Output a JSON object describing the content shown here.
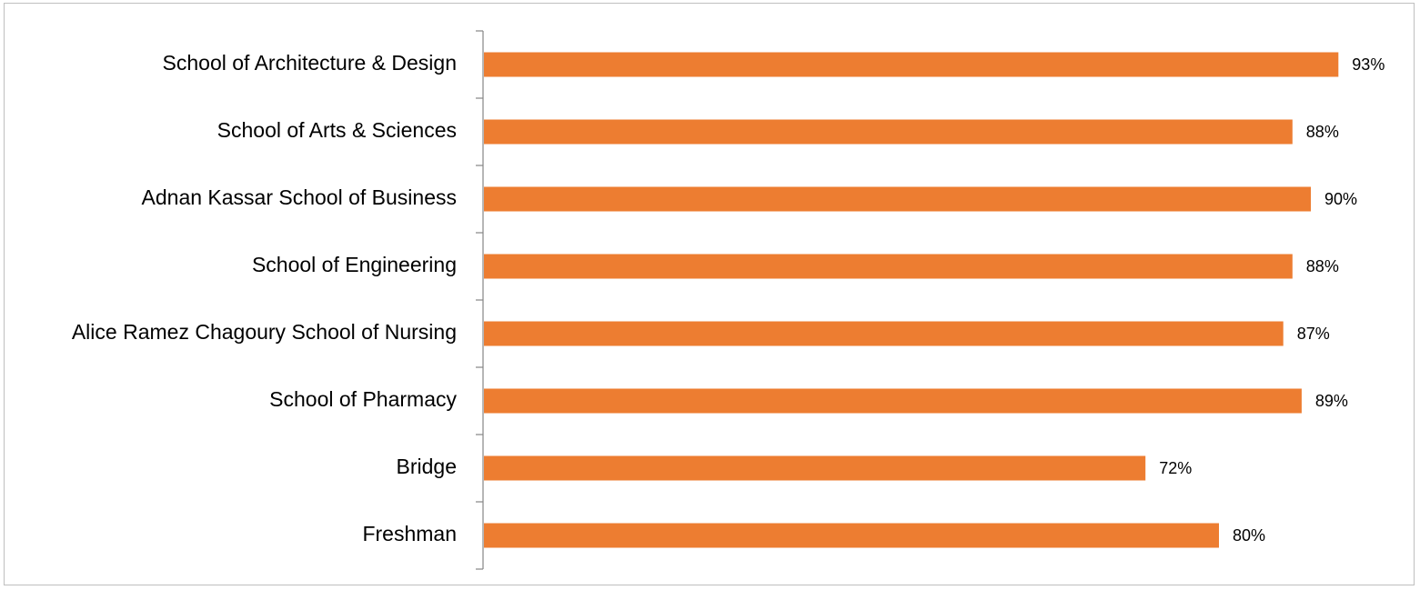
{
  "chart_data": {
    "type": "bar",
    "orientation": "horizontal",
    "categories": [
      "School of Architecture & Design",
      "School of Arts & Sciences",
      "Adnan Kassar School of Business",
      "School of Engineering",
      "Alice Ramez Chagoury School of Nursing",
      "School of Pharmacy",
      "Bridge",
      "Freshman"
    ],
    "values": [
      93,
      88,
      90,
      88,
      87,
      89,
      72,
      80
    ],
    "value_labels": [
      "93%",
      "88%",
      "90%",
      "88%",
      "87%",
      "89%",
      "72%",
      "80%"
    ],
    "unit": "%",
    "xlim": [
      0,
      100
    ],
    "grid": false,
    "legend": "none",
    "bar_color": "#ED7D31",
    "axis_color": "#868686"
  }
}
